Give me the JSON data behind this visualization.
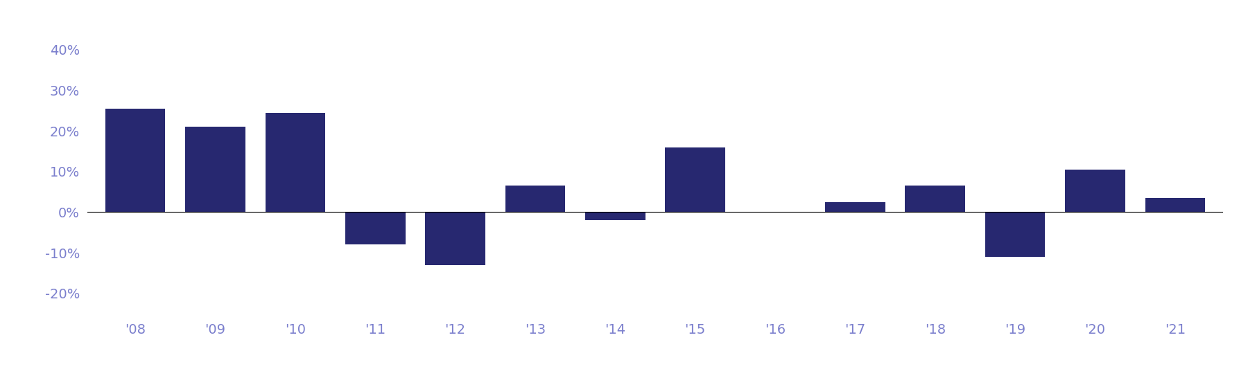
{
  "years": [
    "'08",
    "'09",
    "'10",
    "'11",
    "'12",
    "'13",
    "'14",
    "'15",
    "'16",
    "'17",
    "'18",
    "'19",
    "'20",
    "'21"
  ],
  "values": [
    0.255,
    0.21,
    0.245,
    -0.08,
    -0.13,
    0.065,
    -0.02,
    0.16,
    0.0,
    0.025,
    0.065,
    -0.11,
    0.105,
    0.035
  ],
  "bar_color": "#272870",
  "tick_color": "#7b7fcd",
  "background_color": "#ffffff",
  "ylim": [
    -0.25,
    0.45
  ],
  "yticks": [
    -0.2,
    -0.1,
    0.0,
    0.1,
    0.2,
    0.3,
    0.4
  ],
  "ytick_labels": [
    "-20%",
    "-10%",
    "0%",
    "10%",
    "20%",
    "30%",
    "40%"
  ],
  "bar_width": 0.75,
  "figsize": [
    18.0,
    5.33
  ],
  "dpi": 100,
  "fontsize": 14
}
